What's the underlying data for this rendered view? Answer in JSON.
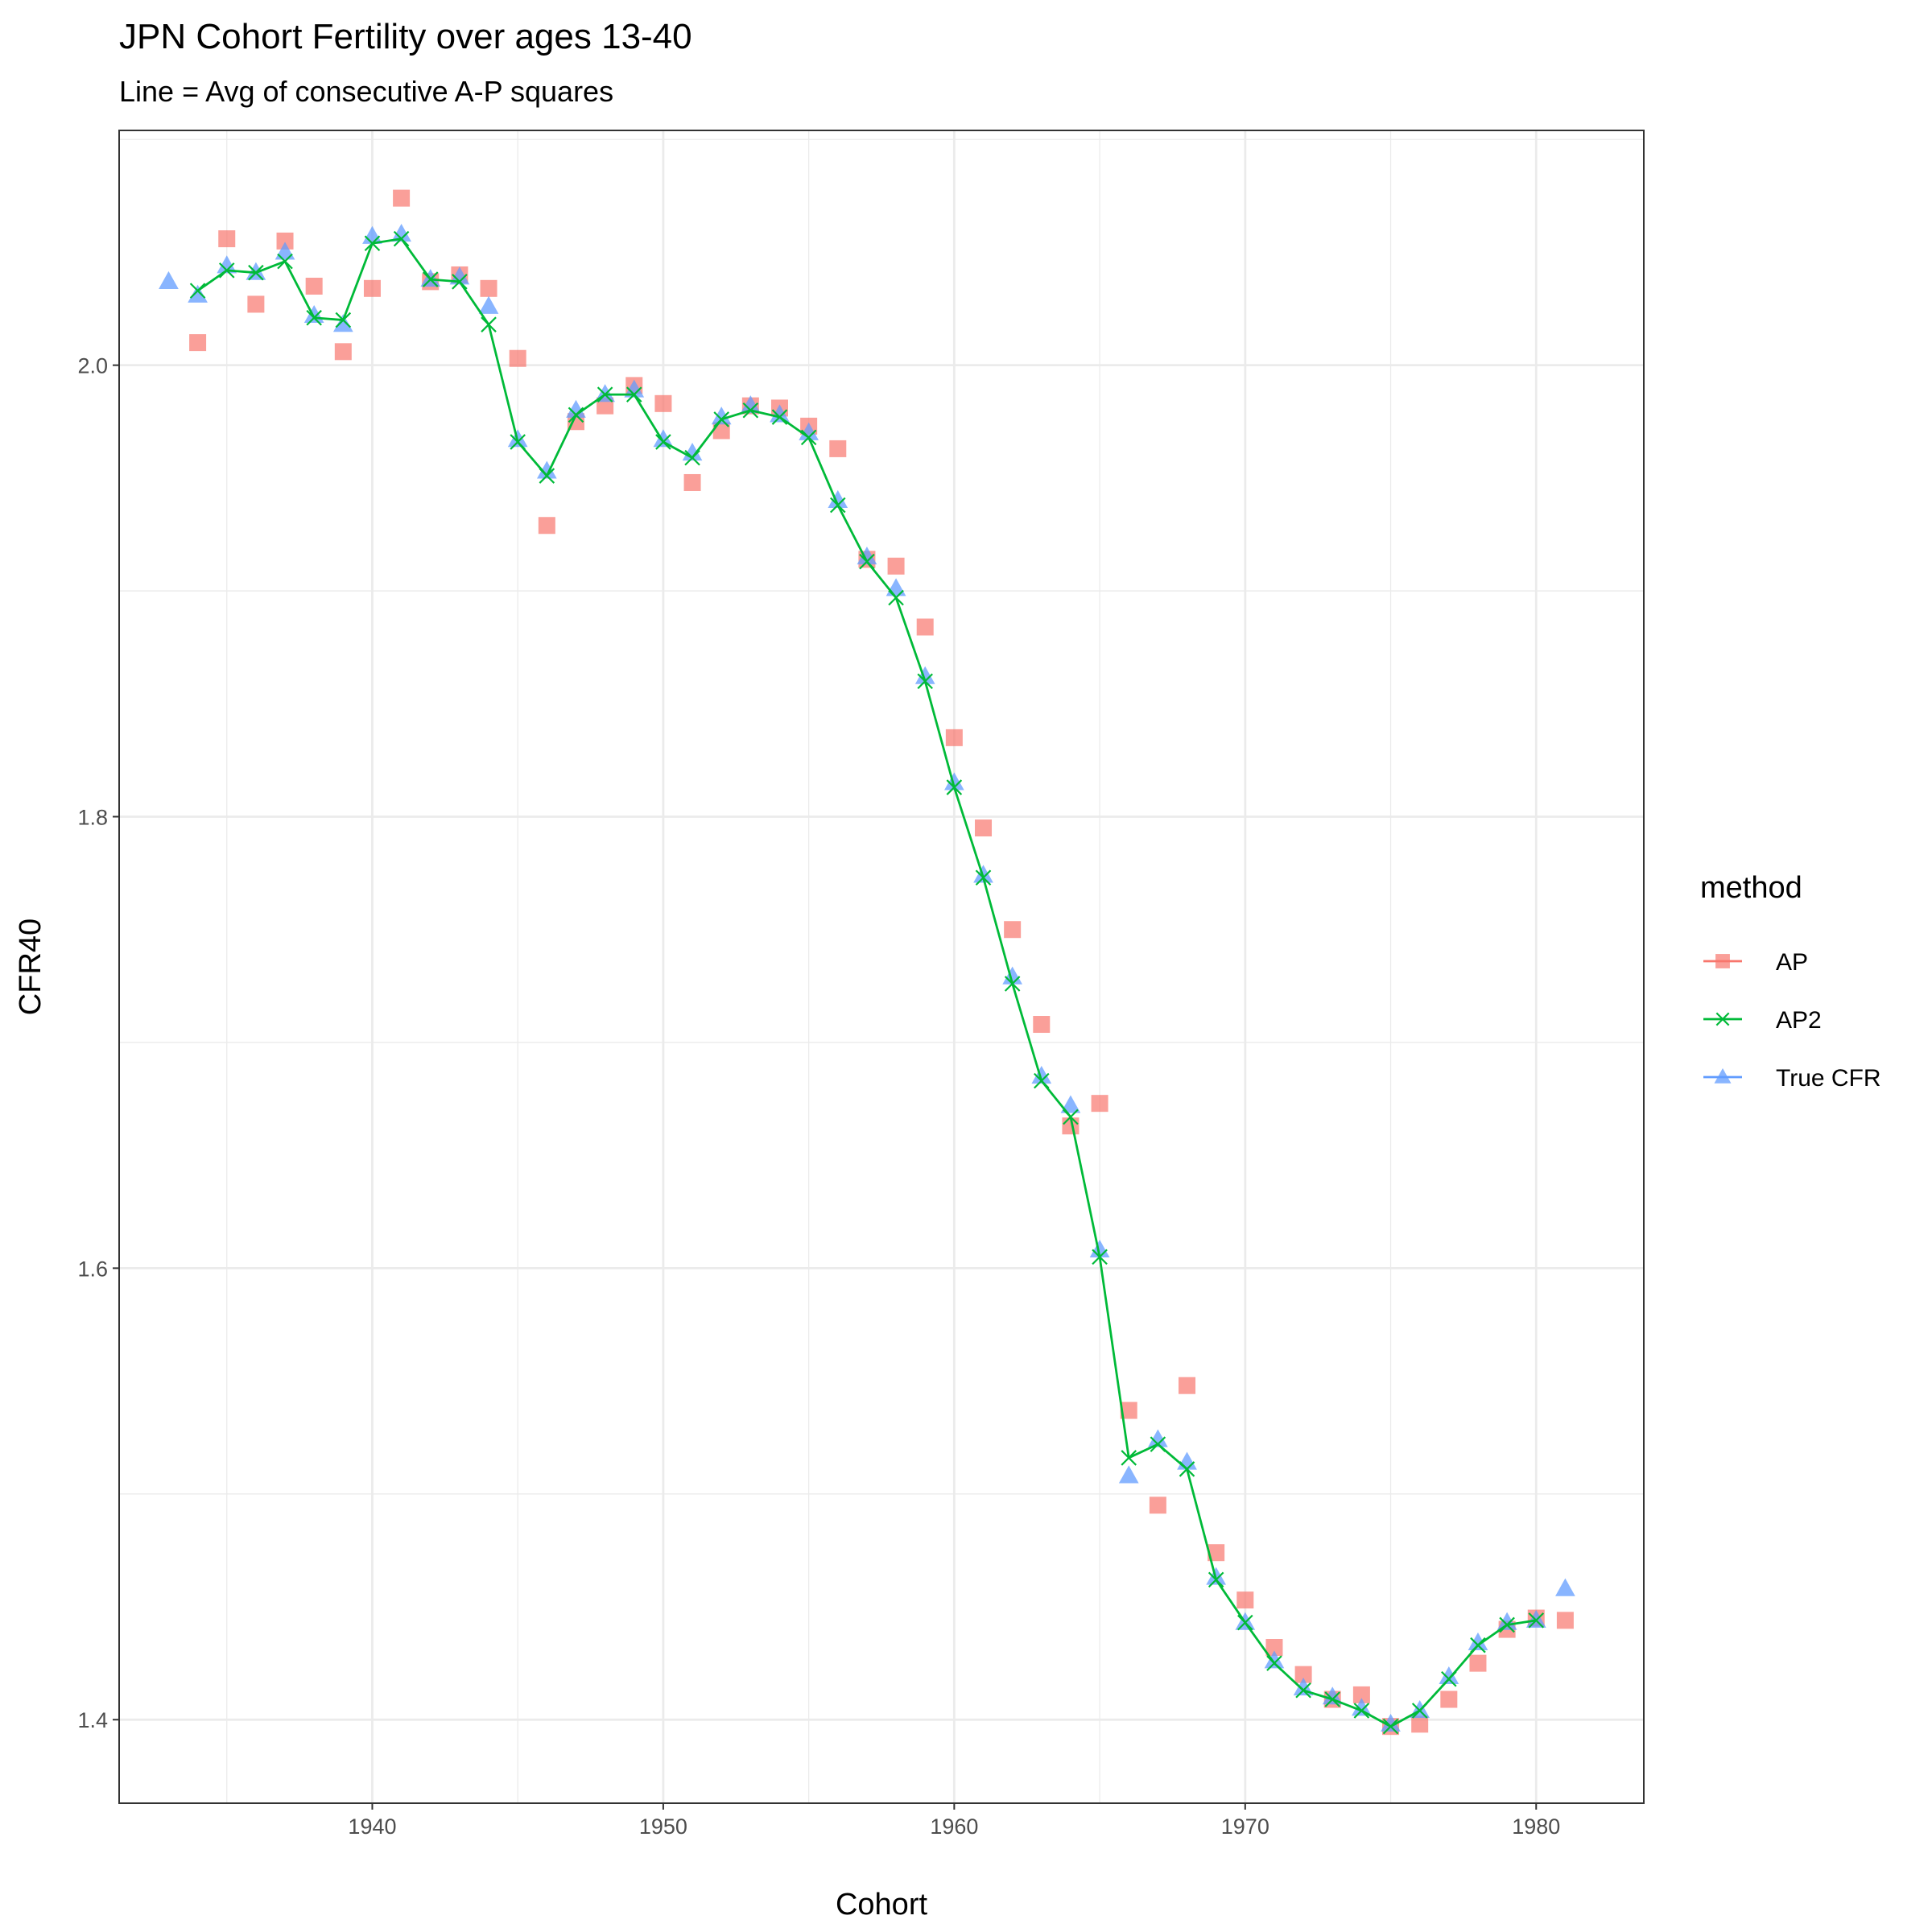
{
  "chart_data": {
    "type": "scatter",
    "title": "JPN Cohort Fertility over ages 13-40",
    "subtitle": "Line = Avg of consecutive A-P squares",
    "xlabel": "Cohort",
    "ylabel": "CFR40",
    "xlim": [
      1931.3,
      1983.7
    ],
    "ylim": [
      1.363,
      2.104
    ],
    "x_major_ticks": [
      1940,
      1950,
      1960,
      1970,
      1980
    ],
    "x_tick_labels": [
      "1940",
      "1950",
      "1960",
      "1970",
      "1980"
    ],
    "x_minor_ticks": [
      1935,
      1945,
      1955,
      1965,
      1975
    ],
    "y_major_ticks": [
      1.4,
      1.6,
      1.8,
      2.0
    ],
    "y_tick_labels": [
      "1.4",
      "1.6",
      "1.8",
      "2.0"
    ],
    "y_minor_ticks": [
      1.5,
      1.7,
      1.9,
      2.1
    ],
    "grid": true,
    "legend": {
      "title": "method",
      "position": "right",
      "entries": [
        {
          "label": "AP",
          "color": "#F8766D",
          "shape": "square",
          "line": true
        },
        {
          "label": "AP2",
          "color": "#00BA38",
          "shape": "x",
          "line": true
        },
        {
          "label": "True CFR",
          "color": "#619CFF",
          "shape": "triangle",
          "line": true
        }
      ]
    },
    "series": [
      {
        "name": "AP",
        "color": "#F8766D",
        "shape": "square",
        "x": [
          1934,
          1935,
          1936,
          1937,
          1938,
          1939,
          1940,
          1941,
          1942,
          1943,
          1944,
          1945,
          1946,
          1947,
          1948,
          1949,
          1950,
          1951,
          1952,
          1953,
          1954,
          1955,
          1956,
          1957,
          1958,
          1959,
          1960,
          1961,
          1962,
          1963,
          1964,
          1965,
          1966,
          1967,
          1968,
          1969,
          1970,
          1971,
          1972,
          1973,
          1974,
          1975,
          1976,
          1977,
          1978,
          1979,
          1980,
          1981
        ],
        "y": [
          2.01,
          2.056,
          2.027,
          2.055,
          2.035,
          2.006,
          2.034,
          2.074,
          2.037,
          2.04,
          2.034,
          2.003,
          1.929,
          1.975,
          1.982,
          1.991,
          1.983,
          1.948,
          1.971,
          1.982,
          1.981,
          1.973,
          1.963,
          1.914,
          1.911,
          1.884,
          1.835,
          1.795,
          1.75,
          1.708,
          1.663,
          1.673,
          1.537,
          1.495,
          1.548,
          1.474,
          1.453,
          1.432,
          1.42,
          1.409,
          1.411,
          1.397,
          1.398,
          1.409,
          1.425,
          1.44,
          1.445,
          1.444
        ]
      },
      {
        "name": "AP2",
        "color": "#00BA38",
        "shape": "x",
        "line": true,
        "x": [
          1934,
          1935,
          1936,
          1937,
          1938,
          1939,
          1940,
          1941,
          1942,
          1943,
          1944,
          1945,
          1946,
          1947,
          1948,
          1949,
          1950,
          1951,
          1952,
          1953,
          1954,
          1955,
          1956,
          1957,
          1958,
          1959,
          1960,
          1961,
          1962,
          1963,
          1964,
          1965,
          1966,
          1967,
          1968,
          1969,
          1970,
          1971,
          1972,
          1973,
          1974,
          1975,
          1976,
          1977,
          1978,
          1979,
          1980
        ],
        "y": [
          2.033,
          2.042,
          2.041,
          2.046,
          2.021,
          2.02,
          2.054,
          2.056,
          2.038,
          2.037,
          2.018,
          1.966,
          1.951,
          1.978,
          1.987,
          1.987,
          1.966,
          1.959,
          1.976,
          1.98,
          1.977,
          1.968,
          1.938,
          1.913,
          1.897,
          1.86,
          1.813,
          1.773,
          1.726,
          1.683,
          1.667,
          1.605,
          1.516,
          1.522,
          1.511,
          1.462,
          1.443,
          1.425,
          1.413,
          1.409,
          1.404,
          1.397,
          1.404,
          1.418,
          1.433,
          1.442,
          1.444
        ]
      },
      {
        "name": "True CFR",
        "color": "#619CFF",
        "shape": "triangle",
        "x": [
          1933,
          1934,
          1935,
          1936,
          1937,
          1938,
          1939,
          1940,
          1941,
          1942,
          1943,
          1944,
          1945,
          1946,
          1947,
          1948,
          1949,
          1950,
          1951,
          1952,
          1953,
          1954,
          1955,
          1956,
          1957,
          1958,
          1959,
          1960,
          1961,
          1962,
          1963,
          1964,
          1965,
          1966,
          1967,
          1968,
          1969,
          1970,
          1971,
          1972,
          1973,
          1974,
          1975,
          1976,
          1977,
          1978,
          1979,
          1980,
          1981
        ],
        "y": [
          2.037,
          2.031,
          2.044,
          2.041,
          2.05,
          2.022,
          2.018,
          2.057,
          2.058,
          2.038,
          2.039,
          2.026,
          1.967,
          1.953,
          1.98,
          1.987,
          1.989,
          1.967,
          1.961,
          1.977,
          1.982,
          1.978,
          1.97,
          1.94,
          1.915,
          1.901,
          1.862,
          1.815,
          1.774,
          1.729,
          1.685,
          1.672,
          1.608,
          1.508,
          1.524,
          1.514,
          1.463,
          1.443,
          1.426,
          1.414,
          1.41,
          1.405,
          1.398,
          1.404,
          1.419,
          1.434,
          1.443,
          1.444,
          1.458
        ]
      }
    ]
  }
}
